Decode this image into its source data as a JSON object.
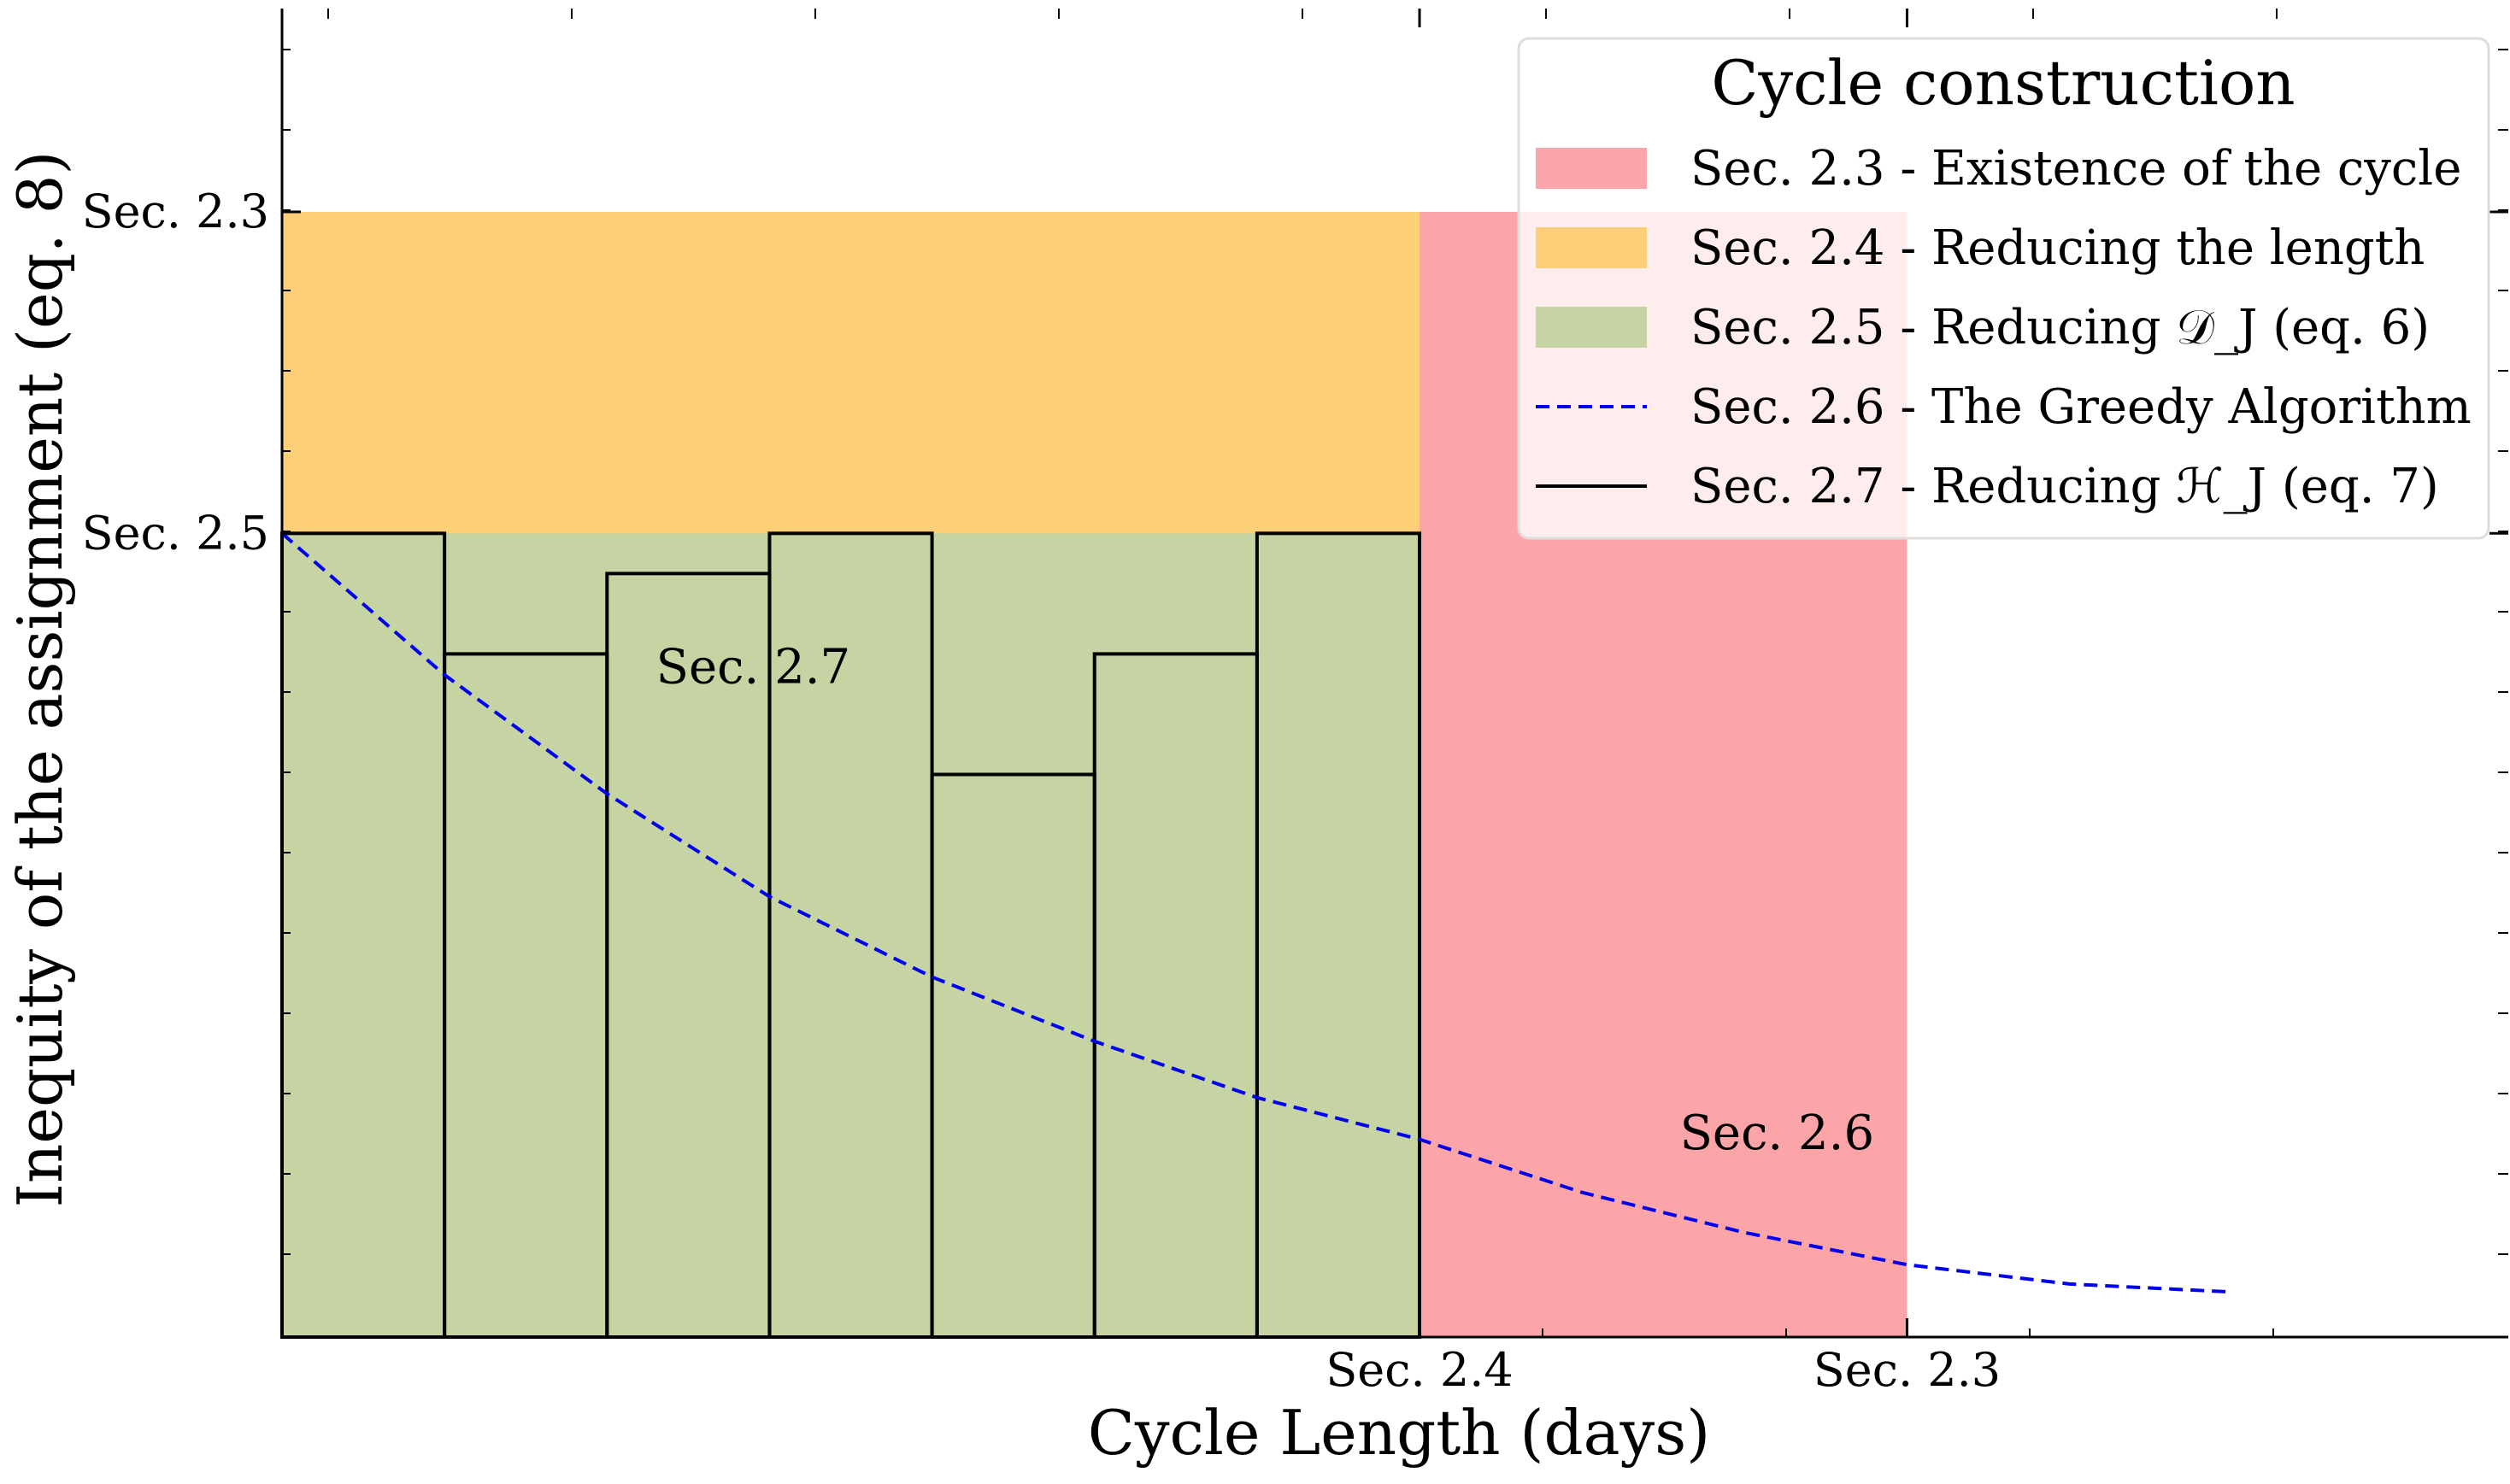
{
  "chart_data": {
    "type": "bar",
    "xlabel": "Cycle Length (days)",
    "ylabel": "Inequity of the assignment (eq. 8)",
    "xlim": [
      0,
      13.7
    ],
    "ylim": [
      0,
      7
    ],
    "grid": false,
    "legend_placement": "top-right",
    "x_tick_labels": [
      {
        "x": 7,
        "label": "Sec. 2.4"
      },
      {
        "x": 10,
        "label": "Sec. 2.3"
      }
    ],
    "y_tick_labels": [
      {
        "y": 7,
        "label": "Sec. 2.3"
      },
      {
        "y": 5,
        "label": "Sec. 2.5"
      }
    ],
    "regions": [
      {
        "name": "Sec. 2.3 - Existence of the cycle",
        "x": [
          0,
          10
        ],
        "y": [
          0,
          7
        ],
        "color": "#fca5a9"
      },
      {
        "name": "Sec. 2.4 - Reducing the length",
        "x": [
          0,
          7
        ],
        "y": [
          0,
          7
        ],
        "color": "#fdcf78"
      },
      {
        "name": "Sec. 2.5 - Reducing 𝒟_J (eq. 6)",
        "x": [
          0,
          7
        ],
        "y": [
          0,
          5
        ],
        "color": "#c5d4a2"
      }
    ],
    "series": [
      {
        "name": "Sec. 2.6 - The Greedy Algorithm",
        "style": "dashed",
        "color": "#0000ee",
        "x": [
          0,
          1,
          2,
          3,
          4,
          5,
          6,
          7,
          8,
          9,
          10,
          11,
          12
        ],
        "y": [
          5.0,
          4.12,
          3.38,
          2.74,
          2.24,
          1.84,
          1.49,
          1.23,
          0.9,
          0.65,
          0.45,
          0.33,
          0.28
        ]
      }
    ],
    "bars": {
      "name": "Sec. 2.7 - Reducing ℋ_J (eq. 7)",
      "color": "#000000",
      "edges": [
        0,
        1,
        2,
        3,
        4,
        5,
        6,
        7
      ],
      "values": [
        5.0,
        4.25,
        4.75,
        5.0,
        3.5,
        4.25,
        5.0
      ]
    },
    "annotations": [
      {
        "text": "Sec. 2.7",
        "x": 2.9,
        "y": 4.07,
        "color": "#000000"
      },
      {
        "text": "Sec. 2.6",
        "x": 9.2,
        "y": 1.17,
        "color": "#0000ee"
      }
    ],
    "legend": {
      "title": "Cycle construction",
      "entries": [
        {
          "label": "Sec. 2.3 - Existence of the cycle",
          "kind": "patch",
          "color": "#fca5a9"
        },
        {
          "label": "Sec. 2.4 - Reducing the length",
          "kind": "patch",
          "color": "#fdcf78"
        },
        {
          "label": "Sec. 2.5 - Reducing 𝒟_J (eq. 6)",
          "kind": "patch",
          "color": "#c5d4a2"
        },
        {
          "label": "Sec. 2.6 - The Greedy Algorithm",
          "kind": "dashed-line",
          "color": "#0000ee"
        },
        {
          "label": "Sec. 2.7 - Reducing ℋ_J (eq. 7)",
          "kind": "line",
          "color": "#000000"
        }
      ]
    }
  }
}
